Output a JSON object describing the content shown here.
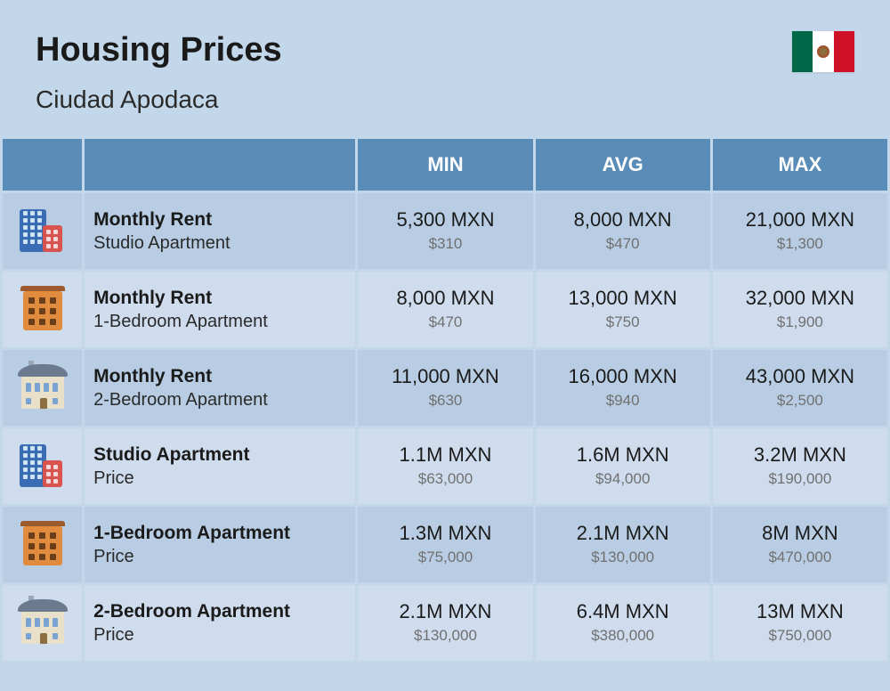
{
  "header": {
    "title": "Housing Prices",
    "subtitle": "Ciudad Apodaca"
  },
  "flag": {
    "green": "#006847",
    "white": "#ffffff",
    "red": "#ce1126"
  },
  "columns": {
    "min": "MIN",
    "avg": "AVG",
    "max": "MAX"
  },
  "colors": {
    "page_bg": "#c3d7eb",
    "header_bg": "#5a8cb8",
    "header_text": "#ffffff",
    "row_a": "#b8cde3",
    "row_b": "#cfdced",
    "text_main": "#1a1a1a",
    "text_sub": "#707070"
  },
  "rows": [
    {
      "icon": "tall",
      "title": "Monthly Rent",
      "sub": "Studio Apartment",
      "min_main": "5,300 MXN",
      "min_sub": "$310",
      "avg_main": "8,000 MXN",
      "avg_sub": "$470",
      "max_main": "21,000 MXN",
      "max_sub": "$1,300"
    },
    {
      "icon": "orange",
      "title": "Monthly Rent",
      "sub": "1-Bedroom Apartment",
      "min_main": "8,000 MXN",
      "min_sub": "$470",
      "avg_main": "13,000 MXN",
      "avg_sub": "$750",
      "max_main": "32,000 MXN",
      "max_sub": "$1,900"
    },
    {
      "icon": "house",
      "title": "Monthly Rent",
      "sub": "2-Bedroom Apartment",
      "min_main": "11,000 MXN",
      "min_sub": "$630",
      "avg_main": "16,000 MXN",
      "avg_sub": "$940",
      "max_main": "43,000 MXN",
      "max_sub": "$2,500"
    },
    {
      "icon": "tall",
      "title": "Studio Apartment",
      "sub": "Price",
      "min_main": "1.1M MXN",
      "min_sub": "$63,000",
      "avg_main": "1.6M MXN",
      "avg_sub": "$94,000",
      "max_main": "3.2M MXN",
      "max_sub": "$190,000"
    },
    {
      "icon": "orange",
      "title": "1-Bedroom Apartment",
      "sub": "Price",
      "min_main": "1.3M MXN",
      "min_sub": "$75,000",
      "avg_main": "2.1M MXN",
      "avg_sub": "$130,000",
      "max_main": "8M MXN",
      "max_sub": "$470,000"
    },
    {
      "icon": "house",
      "title": "2-Bedroom Apartment",
      "sub": "Price",
      "min_main": "2.1M MXN",
      "min_sub": "$130,000",
      "avg_main": "6.4M MXN",
      "avg_sub": "$380,000",
      "max_main": "13M MXN",
      "max_sub": "$750,000"
    }
  ]
}
